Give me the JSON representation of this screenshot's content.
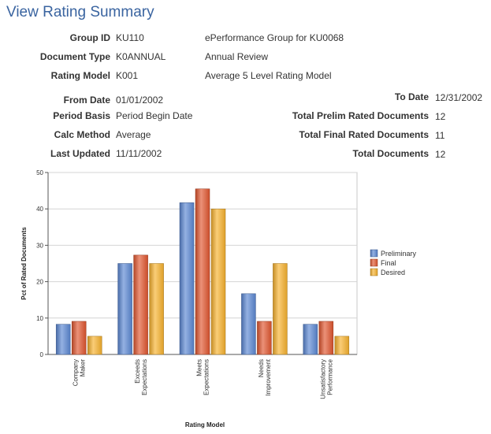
{
  "page": {
    "title": "View Rating Summary"
  },
  "header": {
    "group_id": {
      "label": "Group ID",
      "code": "KU110",
      "desc": "ePerformance Group for KU0068"
    },
    "document_type": {
      "label": "Document Type",
      "code": "K0ANNUAL",
      "desc": "Annual Review"
    },
    "rating_model": {
      "label": "Rating Model",
      "code": "K001",
      "desc": "Average 5 Level Rating Model"
    }
  },
  "details_left": {
    "from_date": {
      "label": "From Date",
      "value": "01/01/2002"
    },
    "period_basis": {
      "label": "Period Basis",
      "value": "Period Begin Date"
    },
    "calc_method": {
      "label": "Calc Method",
      "value": "Average"
    },
    "last_updated": {
      "label": "Last Updated",
      "value": "11/11/2002"
    }
  },
  "details_right": {
    "to_date": {
      "label": "To Date",
      "value": "12/31/2002"
    },
    "total_prelim": {
      "label": "Total Prelim Rated Documents",
      "value": "12"
    },
    "total_final": {
      "label": "Total Final Rated Documents",
      "value": "11"
    },
    "total_docs": {
      "label": "Total Documents",
      "value": "12"
    }
  },
  "chart_data": {
    "type": "bar",
    "title": "",
    "xlabel": "Rating Model",
    "ylabel": "Pct of Rated Documents",
    "ylim": [
      0,
      50
    ],
    "yticks": [
      0,
      10,
      20,
      30,
      40,
      50
    ],
    "grid": true,
    "legend_position": "right",
    "categories": [
      [
        "Company",
        "Maker"
      ],
      [
        "Exceeds",
        "Expectations"
      ],
      [
        "Meets",
        "Expectations"
      ],
      [
        "Needs",
        "Improvement"
      ],
      [
        "Unsatisfactory",
        "Performance"
      ]
    ],
    "series": [
      {
        "name": "Preliminary",
        "color": "#5b87d3",
        "values": [
          8.3,
          25.0,
          41.7,
          16.7,
          8.3
        ]
      },
      {
        "name": "Final",
        "color": "#e0562f",
        "values": [
          9.1,
          27.3,
          45.5,
          9.1,
          9.1
        ]
      },
      {
        "name": "Desired",
        "color": "#f7b22e",
        "values": [
          5.0,
          25.0,
          40.0,
          25.0,
          5.0
        ]
      }
    ]
  }
}
